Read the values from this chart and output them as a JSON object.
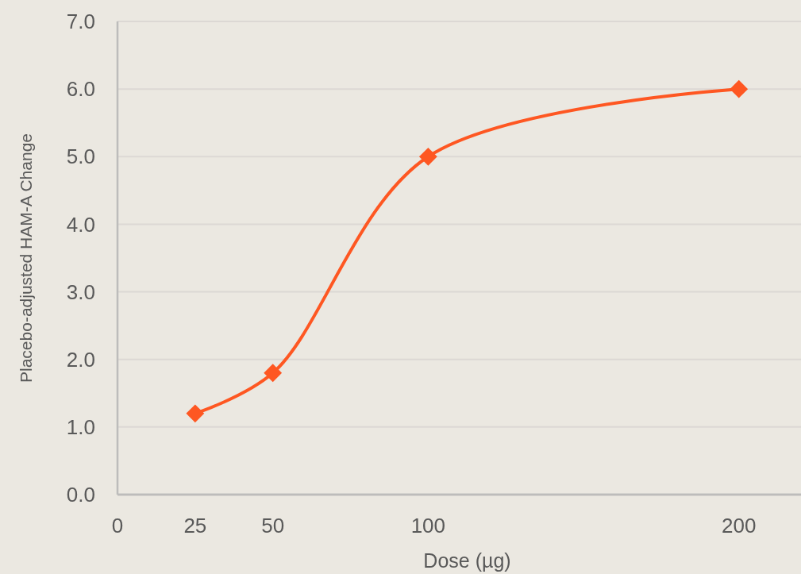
{
  "chart_data": {
    "type": "line",
    "xlabel": "Dose (µg)",
    "ylabel": "Placebo-adjusted HAM-A Change",
    "x": [
      25,
      50,
      100,
      200
    ],
    "series": [
      {
        "color": "#fe5722",
        "values": [
          1.2,
          1.8,
          5.0,
          6.0
        ]
      }
    ],
    "xlim": [
      0,
      220
    ],
    "xticks": [
      0,
      25,
      50,
      100,
      200
    ],
    "ylim": [
      0,
      7
    ],
    "yticks": [
      {
        "value": 0,
        "label": "0.0"
      },
      {
        "value": 1,
        "label": "1.0"
      },
      {
        "value": 2,
        "label": "2.0"
      },
      {
        "value": 3,
        "label": "3.0"
      },
      {
        "value": 4,
        "label": "4.0"
      },
      {
        "value": 5,
        "label": "5.0"
      },
      {
        "value": 6,
        "label": "6.0"
      },
      {
        "value": 7,
        "label": "7.0"
      }
    ],
    "grid": "y",
    "marker": "diamond",
    "line_style": "solid"
  }
}
